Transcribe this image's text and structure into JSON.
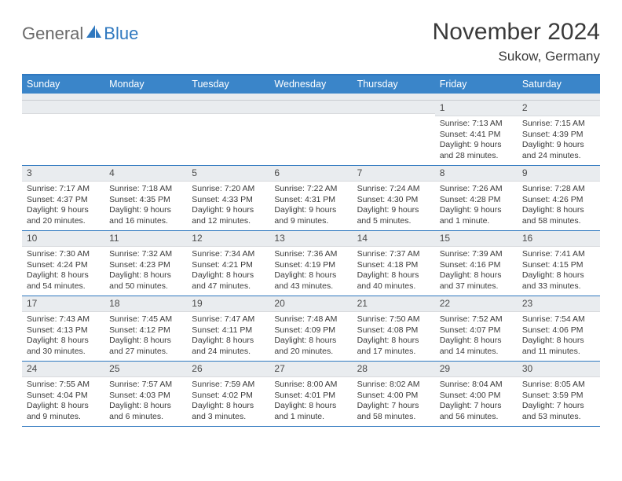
{
  "brand": {
    "part1": "General",
    "part2": "Blue"
  },
  "title": "November 2024",
  "location": "Sukow, Germany",
  "day_headers": [
    "Sunday",
    "Monday",
    "Tuesday",
    "Wednesday",
    "Thursday",
    "Friday",
    "Saturday"
  ],
  "colors": {
    "header_bg": "#3a85c9",
    "accent": "#2f78bf",
    "daynum_bg": "#e9ecef",
    "text": "#3a3a3a"
  },
  "weeks": [
    [
      {
        "n": "",
        "sr": "",
        "ss": "",
        "dl": ""
      },
      {
        "n": "",
        "sr": "",
        "ss": "",
        "dl": ""
      },
      {
        "n": "",
        "sr": "",
        "ss": "",
        "dl": ""
      },
      {
        "n": "",
        "sr": "",
        "ss": "",
        "dl": ""
      },
      {
        "n": "",
        "sr": "",
        "ss": "",
        "dl": ""
      },
      {
        "n": "1",
        "sr": "Sunrise: 7:13 AM",
        "ss": "Sunset: 4:41 PM",
        "dl": "Daylight: 9 hours and 28 minutes."
      },
      {
        "n": "2",
        "sr": "Sunrise: 7:15 AM",
        "ss": "Sunset: 4:39 PM",
        "dl": "Daylight: 9 hours and 24 minutes."
      }
    ],
    [
      {
        "n": "3",
        "sr": "Sunrise: 7:17 AM",
        "ss": "Sunset: 4:37 PM",
        "dl": "Daylight: 9 hours and 20 minutes."
      },
      {
        "n": "4",
        "sr": "Sunrise: 7:18 AM",
        "ss": "Sunset: 4:35 PM",
        "dl": "Daylight: 9 hours and 16 minutes."
      },
      {
        "n": "5",
        "sr": "Sunrise: 7:20 AM",
        "ss": "Sunset: 4:33 PM",
        "dl": "Daylight: 9 hours and 12 minutes."
      },
      {
        "n": "6",
        "sr": "Sunrise: 7:22 AM",
        "ss": "Sunset: 4:31 PM",
        "dl": "Daylight: 9 hours and 9 minutes."
      },
      {
        "n": "7",
        "sr": "Sunrise: 7:24 AM",
        "ss": "Sunset: 4:30 PM",
        "dl": "Daylight: 9 hours and 5 minutes."
      },
      {
        "n": "8",
        "sr": "Sunrise: 7:26 AM",
        "ss": "Sunset: 4:28 PM",
        "dl": "Daylight: 9 hours and 1 minute."
      },
      {
        "n": "9",
        "sr": "Sunrise: 7:28 AM",
        "ss": "Sunset: 4:26 PM",
        "dl": "Daylight: 8 hours and 58 minutes."
      }
    ],
    [
      {
        "n": "10",
        "sr": "Sunrise: 7:30 AM",
        "ss": "Sunset: 4:24 PM",
        "dl": "Daylight: 8 hours and 54 minutes."
      },
      {
        "n": "11",
        "sr": "Sunrise: 7:32 AM",
        "ss": "Sunset: 4:23 PM",
        "dl": "Daylight: 8 hours and 50 minutes."
      },
      {
        "n": "12",
        "sr": "Sunrise: 7:34 AM",
        "ss": "Sunset: 4:21 PM",
        "dl": "Daylight: 8 hours and 47 minutes."
      },
      {
        "n": "13",
        "sr": "Sunrise: 7:36 AM",
        "ss": "Sunset: 4:19 PM",
        "dl": "Daylight: 8 hours and 43 minutes."
      },
      {
        "n": "14",
        "sr": "Sunrise: 7:37 AM",
        "ss": "Sunset: 4:18 PM",
        "dl": "Daylight: 8 hours and 40 minutes."
      },
      {
        "n": "15",
        "sr": "Sunrise: 7:39 AM",
        "ss": "Sunset: 4:16 PM",
        "dl": "Daylight: 8 hours and 37 minutes."
      },
      {
        "n": "16",
        "sr": "Sunrise: 7:41 AM",
        "ss": "Sunset: 4:15 PM",
        "dl": "Daylight: 8 hours and 33 minutes."
      }
    ],
    [
      {
        "n": "17",
        "sr": "Sunrise: 7:43 AM",
        "ss": "Sunset: 4:13 PM",
        "dl": "Daylight: 8 hours and 30 minutes."
      },
      {
        "n": "18",
        "sr": "Sunrise: 7:45 AM",
        "ss": "Sunset: 4:12 PM",
        "dl": "Daylight: 8 hours and 27 minutes."
      },
      {
        "n": "19",
        "sr": "Sunrise: 7:47 AM",
        "ss": "Sunset: 4:11 PM",
        "dl": "Daylight: 8 hours and 24 minutes."
      },
      {
        "n": "20",
        "sr": "Sunrise: 7:48 AM",
        "ss": "Sunset: 4:09 PM",
        "dl": "Daylight: 8 hours and 20 minutes."
      },
      {
        "n": "21",
        "sr": "Sunrise: 7:50 AM",
        "ss": "Sunset: 4:08 PM",
        "dl": "Daylight: 8 hours and 17 minutes."
      },
      {
        "n": "22",
        "sr": "Sunrise: 7:52 AM",
        "ss": "Sunset: 4:07 PM",
        "dl": "Daylight: 8 hours and 14 minutes."
      },
      {
        "n": "23",
        "sr": "Sunrise: 7:54 AM",
        "ss": "Sunset: 4:06 PM",
        "dl": "Daylight: 8 hours and 11 minutes."
      }
    ],
    [
      {
        "n": "24",
        "sr": "Sunrise: 7:55 AM",
        "ss": "Sunset: 4:04 PM",
        "dl": "Daylight: 8 hours and 9 minutes."
      },
      {
        "n": "25",
        "sr": "Sunrise: 7:57 AM",
        "ss": "Sunset: 4:03 PM",
        "dl": "Daylight: 8 hours and 6 minutes."
      },
      {
        "n": "26",
        "sr": "Sunrise: 7:59 AM",
        "ss": "Sunset: 4:02 PM",
        "dl": "Daylight: 8 hours and 3 minutes."
      },
      {
        "n": "27",
        "sr": "Sunrise: 8:00 AM",
        "ss": "Sunset: 4:01 PM",
        "dl": "Daylight: 8 hours and 1 minute."
      },
      {
        "n": "28",
        "sr": "Sunrise: 8:02 AM",
        "ss": "Sunset: 4:00 PM",
        "dl": "Daylight: 7 hours and 58 minutes."
      },
      {
        "n": "29",
        "sr": "Sunrise: 8:04 AM",
        "ss": "Sunset: 4:00 PM",
        "dl": "Daylight: 7 hours and 56 minutes."
      },
      {
        "n": "30",
        "sr": "Sunrise: 8:05 AM",
        "ss": "Sunset: 3:59 PM",
        "dl": "Daylight: 7 hours and 53 minutes."
      }
    ]
  ]
}
